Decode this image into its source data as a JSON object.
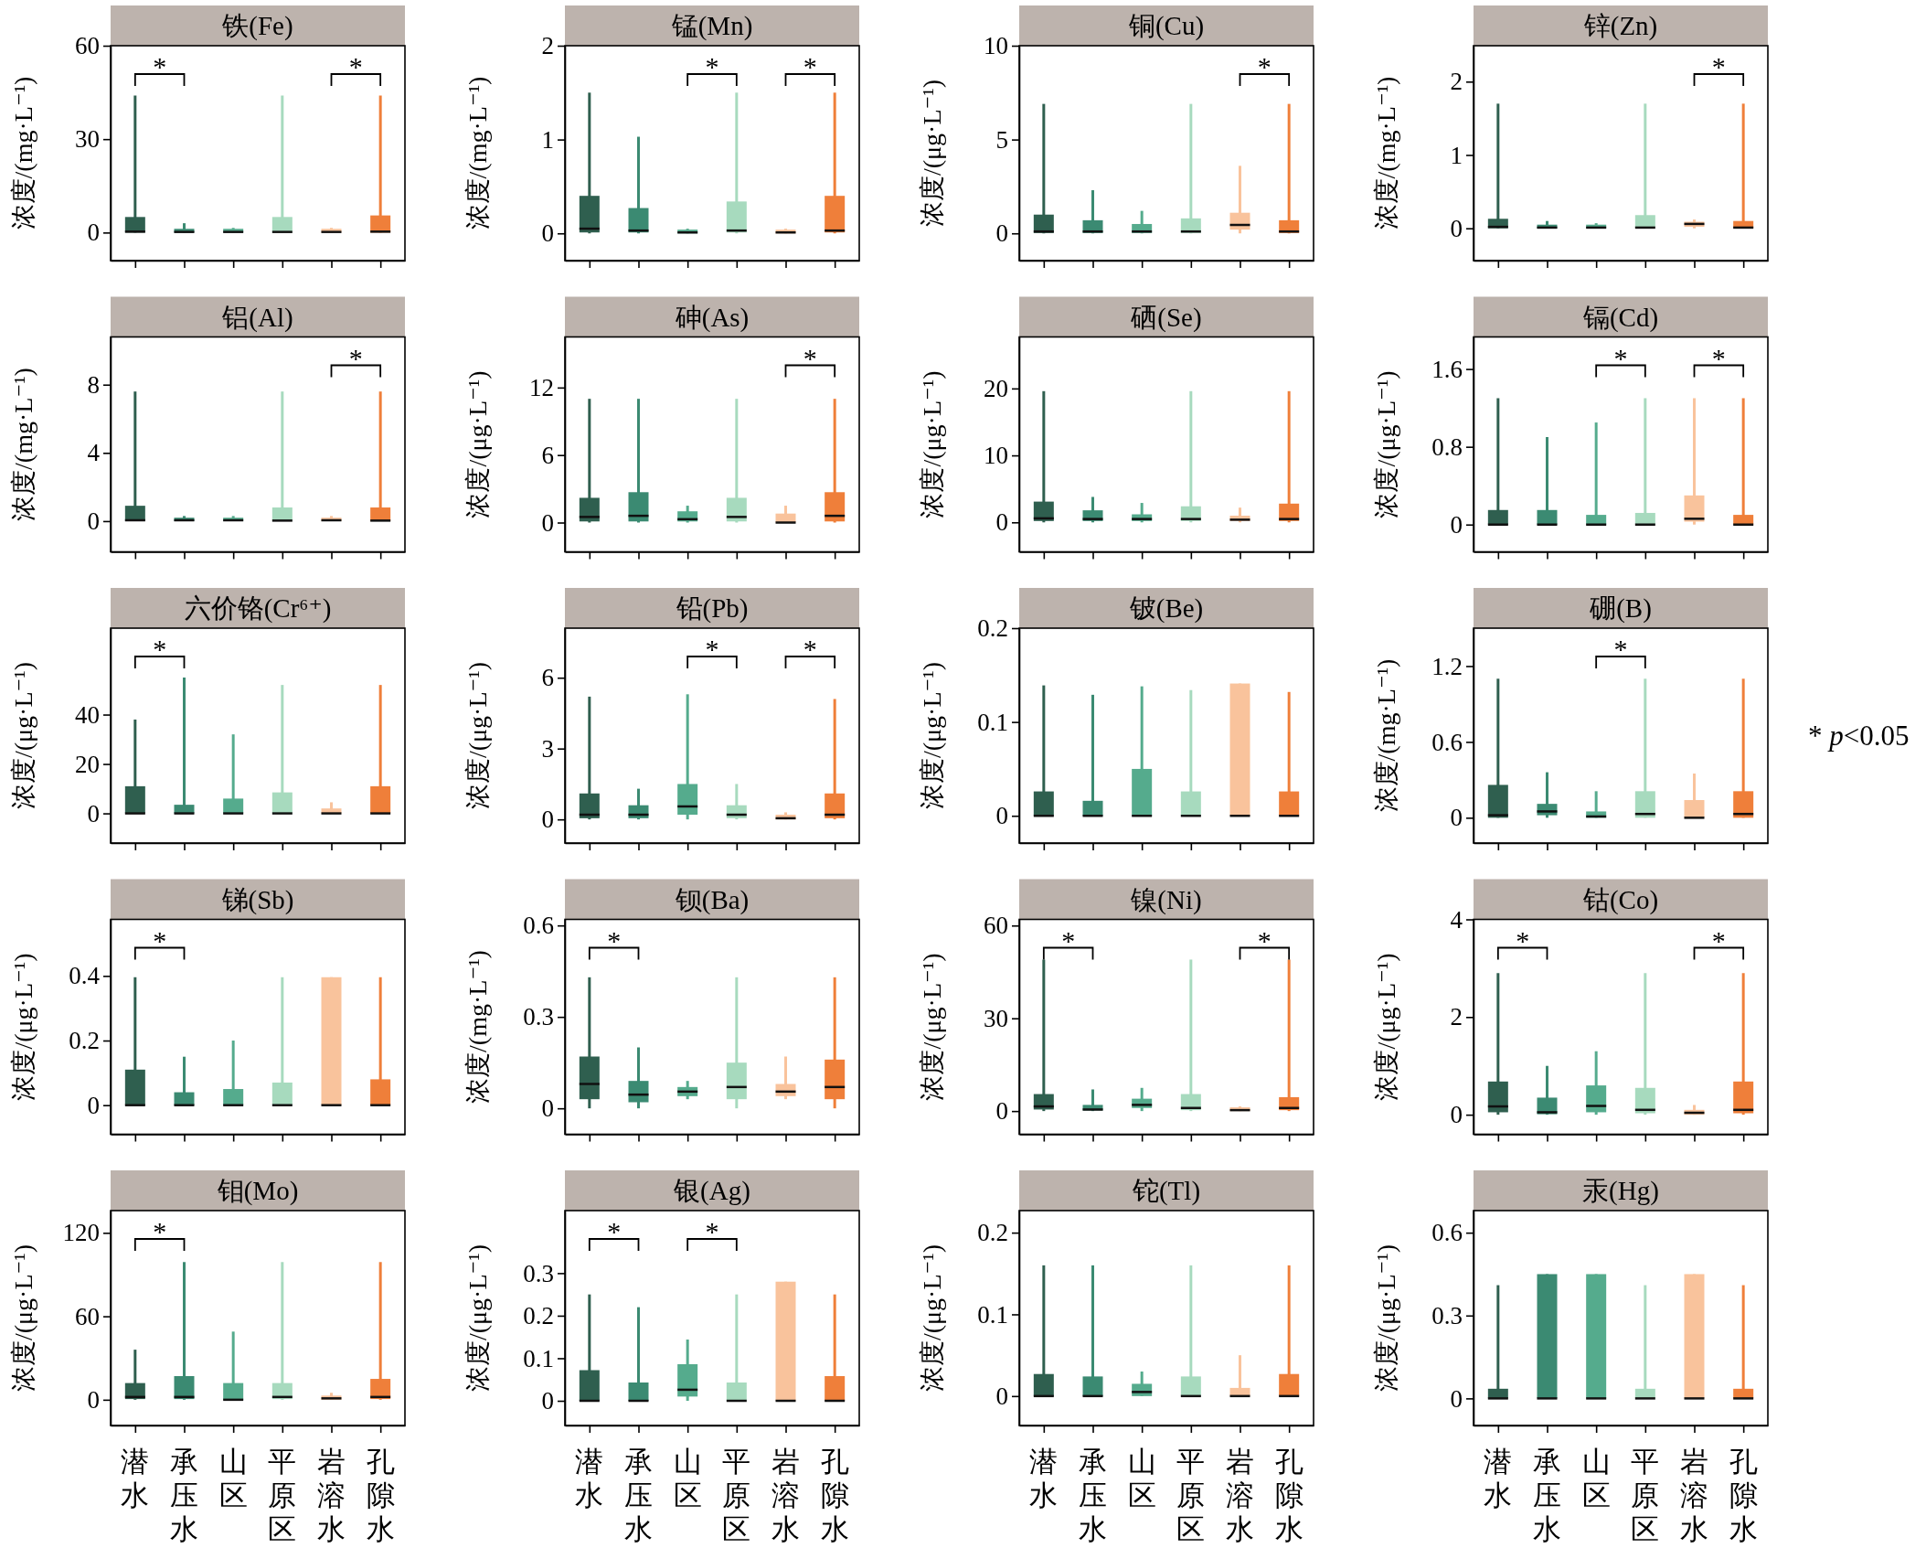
{
  "chart_data": [
    {
      "type": "box",
      "title": "铁(Fe)",
      "ylabel": "浓度/(mg·L⁻¹)",
      "categories": [
        null,
        null,
        null,
        null,
        null,
        null
      ],
      "colors": [
        "#2f5f4f",
        "#3b8a72",
        "#55ab8d",
        "#a7dabe",
        "#f9c39c",
        "#ef7f3a"
      ],
      "boxes": [
        {
          "low": 0,
          "q1": 0,
          "median": 0.3,
          "q3": 5,
          "high": 44
        },
        {
          "low": 0,
          "q1": 0,
          "median": 0.2,
          "q3": 1.2,
          "high": 3
        },
        {
          "low": 0,
          "q1": 0,
          "median": 0.2,
          "q3": 1.2,
          "high": 1.5
        },
        {
          "low": 0,
          "q1": 0,
          "median": 0.2,
          "q3": 5,
          "high": 44
        },
        {
          "low": 0,
          "q1": 0,
          "median": 0.2,
          "q3": 1.2,
          "high": 1.5
        },
        {
          "low": 0,
          "q1": 0,
          "median": 0.3,
          "q3": 5.5,
          "high": 44
        }
      ],
      "ylim": [
        -9,
        60
      ],
      "yticks": [
        0,
        30,
        60
      ],
      "annotations": [
        "*",
        "*"
      ]
    },
    {
      "type": "box",
      "title": "锰(Mn)",
      "ylabel": "浓度/(mg·L⁻¹)",
      "categories": [
        null,
        null,
        null,
        null,
        null,
        null
      ],
      "colors": [
        "#2f5f4f",
        "#3b8a72",
        "#55ab8d",
        "#a7dabe",
        "#f9c39c",
        "#ef7f3a"
      ],
      "boxes": [
        {
          "low": 0,
          "q1": 0.01,
          "median": 0.05,
          "q3": 0.4,
          "high": 1.5
        },
        {
          "low": 0,
          "q1": 0.01,
          "median": 0.03,
          "q3": 0.27,
          "high": 1.03
        },
        {
          "low": 0,
          "q1": 0,
          "median": 0.01,
          "q3": 0.04,
          "high": 0.05
        },
        {
          "low": 0,
          "q1": 0.01,
          "median": 0.03,
          "q3": 0.34,
          "high": 1.5
        },
        {
          "low": 0,
          "q1": 0,
          "median": 0.01,
          "q3": 0.04,
          "high": 0.05
        },
        {
          "low": 0,
          "q1": 0.01,
          "median": 0.03,
          "q3": 0.4,
          "high": 1.5
        }
      ],
      "ylim": [
        -0.29,
        2
      ],
      "yticks": [
        0,
        1,
        2
      ],
      "annotations": [
        "*",
        "*"
      ]
    },
    {
      "type": "box",
      "title": "铜(Cu)",
      "ylabel": "浓度/(μg·L⁻¹)",
      "categories": [
        null,
        null,
        null,
        null,
        null,
        null
      ],
      "colors": [
        "#2f5f4f",
        "#3b8a72",
        "#55ab8d",
        "#a7dabe",
        "#f9c39c",
        "#ef7f3a"
      ],
      "boxes": [
        {
          "low": 0,
          "q1": 0.02,
          "median": 0.1,
          "q3": 1,
          "high": 6.9
        },
        {
          "low": 0,
          "q1": 0.02,
          "median": 0.1,
          "q3": 0.7,
          "high": 2.3
        },
        {
          "low": 0,
          "q1": 0.02,
          "median": 0.1,
          "q3": 0.5,
          "high": 1.2
        },
        {
          "low": 0,
          "q1": 0.02,
          "median": 0.1,
          "q3": 0.8,
          "high": 6.9
        },
        {
          "low": 0,
          "q1": 0.2,
          "median": 0.45,
          "q3": 1.1,
          "high": 3.6
        },
        {
          "low": 0,
          "q1": 0.02,
          "median": 0.1,
          "q3": 0.7,
          "high": 6.9
        }
      ],
      "ylim": [
        -1.45,
        10
      ],
      "yticks": [
        0,
        5,
        10
      ],
      "annotations": [
        "*"
      ]
    },
    {
      "type": "box",
      "title": "锌(Zn)",
      "ylabel": "浓度/(mg·L⁻¹)",
      "categories": [
        null,
        null,
        null,
        null,
        null,
        null
      ],
      "colors": [
        "#2f5f4f",
        "#3b8a72",
        "#55ab8d",
        "#a7dabe",
        "#f9c39c",
        "#ef7f3a"
      ],
      "boxes": [
        {
          "low": 0,
          "q1": 0,
          "median": 0.02,
          "q3": 0.13,
          "high": 1.7
        },
        {
          "low": 0,
          "q1": 0,
          "median": 0.01,
          "q3": 0.05,
          "high": 0.1
        },
        {
          "low": 0,
          "q1": 0,
          "median": 0.01,
          "q3": 0.05,
          "high": 0.07
        },
        {
          "low": 0,
          "q1": 0,
          "median": 0.01,
          "q3": 0.18,
          "high": 1.7
        },
        {
          "low": 0,
          "q1": 0.02,
          "median": 0.06,
          "q3": 0.09,
          "high": 0.12
        },
        {
          "low": 0,
          "q1": 0,
          "median": 0.01,
          "q3": 0.1,
          "high": 1.7
        }
      ],
      "ylim": [
        -0.44,
        2.49
      ],
      "yticks": [
        0,
        1,
        2
      ],
      "annotations": [
        "*"
      ]
    },
    {
      "type": "box",
      "title": "铝(Al)",
      "ylabel": "浓度/(mg·L⁻¹)",
      "categories": [
        null,
        null,
        null,
        null,
        null,
        null
      ],
      "colors": [
        "#2f5f4f",
        "#3b8a72",
        "#55ab8d",
        "#a7dabe",
        "#f9c39c",
        "#ef7f3a"
      ],
      "boxes": [
        {
          "low": 0,
          "q1": 0,
          "median": 0.05,
          "q3": 0.9,
          "high": 7.6
        },
        {
          "low": 0,
          "q1": 0,
          "median": 0.05,
          "q3": 0.2,
          "high": 0.3
        },
        {
          "low": 0,
          "q1": 0,
          "median": 0.05,
          "q3": 0.2,
          "high": 0.3
        },
        {
          "low": 0,
          "q1": 0,
          "median": 0.03,
          "q3": 0.8,
          "high": 7.6
        },
        {
          "low": 0,
          "q1": 0,
          "median": 0.05,
          "q3": 0.2,
          "high": 0.3
        },
        {
          "low": 0,
          "q1": 0,
          "median": 0.03,
          "q3": 0.8,
          "high": 7.6
        }
      ],
      "ylim": [
        -1.8,
        10.8
      ],
      "yticks": [
        0,
        4,
        8
      ],
      "annotations": [
        "*"
      ]
    },
    {
      "type": "box",
      "title": "砷(As)",
      "ylabel": "浓度/(μg·L⁻¹)",
      "categories": [
        null,
        null,
        null,
        null,
        null,
        null
      ],
      "colors": [
        "#2f5f4f",
        "#3b8a72",
        "#55ab8d",
        "#a7dabe",
        "#f9c39c",
        "#ef7f3a"
      ],
      "boxes": [
        {
          "low": 0,
          "q1": 0.1,
          "median": 0.5,
          "q3": 2.2,
          "high": 11
        },
        {
          "low": 0,
          "q1": 0.1,
          "median": 0.6,
          "q3": 2.7,
          "high": 11
        },
        {
          "low": 0,
          "q1": 0.1,
          "median": 0.3,
          "q3": 1,
          "high": 1.5
        },
        {
          "low": 0,
          "q1": 0.1,
          "median": 0.5,
          "q3": 2.2,
          "high": 11
        },
        {
          "low": 0,
          "q1": 0,
          "median": 0,
          "q3": 0.8,
          "high": 1.5
        },
        {
          "low": 0,
          "q1": 0.1,
          "median": 0.6,
          "q3": 2.7,
          "high": 11
        }
      ],
      "ylim": [
        -2.6,
        16.5
      ],
      "yticks": [
        0,
        6,
        12
      ],
      "annotations": [
        "*"
      ]
    },
    {
      "type": "box",
      "title": "硒(Se)",
      "ylabel": "浓度/(μg·L⁻¹)",
      "categories": [
        null,
        null,
        null,
        null,
        null,
        null
      ],
      "colors": [
        "#2f5f4f",
        "#3b8a72",
        "#55ab8d",
        "#a7dabe",
        "#f9c39c",
        "#ef7f3a"
      ],
      "boxes": [
        {
          "low": 0,
          "q1": 0.2,
          "median": 0.6,
          "q3": 3.1,
          "high": 19.6
        },
        {
          "low": 0,
          "q1": 0.2,
          "median": 0.5,
          "q3": 1.8,
          "high": 3.8
        },
        {
          "low": 0,
          "q1": 0.2,
          "median": 0.5,
          "q3": 1.2,
          "high": 2.9
        },
        {
          "low": 0,
          "q1": 0.2,
          "median": 0.5,
          "q3": 2.4,
          "high": 19.6
        },
        {
          "low": 0,
          "q1": 0.2,
          "median": 0.4,
          "q3": 1,
          "high": 2.2
        },
        {
          "low": 0,
          "q1": 0.2,
          "median": 0.5,
          "q3": 2.8,
          "high": 19.6
        }
      ],
      "ylim": [
        -4.4,
        27.7
      ],
      "yticks": [
        0,
        10,
        20
      ]
    },
    {
      "type": "box",
      "title": "镉(Cd)",
      "ylabel": "浓度/(μg·L⁻¹)",
      "categories": [
        null,
        null,
        null,
        null,
        null,
        null
      ],
      "colors": [
        "#2f5f4f",
        "#3b8a72",
        "#55ab8d",
        "#a7dabe",
        "#f9c39c",
        "#ef7f3a"
      ],
      "boxes": [
        {
          "low": 0,
          "q1": 0,
          "median": 0,
          "q3": 0.15,
          "high": 1.3
        },
        {
          "low": 0,
          "q1": 0,
          "median": 0,
          "q3": 0.15,
          "high": 0.9
        },
        {
          "low": 0,
          "q1": 0,
          "median": 0,
          "q3": 0.1,
          "high": 1.05
        },
        {
          "low": 0,
          "q1": 0,
          "median": 0,
          "q3": 0.12,
          "high": 1.3
        },
        {
          "low": 0,
          "q1": 0.03,
          "median": 0.06,
          "q3": 0.3,
          "high": 1.3
        },
        {
          "low": 0,
          "q1": 0,
          "median": 0,
          "q3": 0.1,
          "high": 1.3
        }
      ],
      "ylim": [
        -0.28,
        1.93
      ],
      "yticks": [
        0,
        0.8,
        1.6
      ],
      "annotations": [
        "*",
        "*"
      ]
    },
    {
      "type": "box",
      "title": "六价铬(Cr⁶⁺)",
      "ylabel": "浓度/(μg·L⁻¹)",
      "categories": [
        null,
        null,
        null,
        null,
        null,
        null
      ],
      "colors": [
        "#2f5f4f",
        "#3b8a72",
        "#55ab8d",
        "#a7dabe",
        "#f9c39c",
        "#ef7f3a"
      ],
      "boxes": [
        {
          "low": 0,
          "q1": 0,
          "median": 0,
          "q3": 11,
          "high": 38
        },
        {
          "low": 0,
          "q1": 0,
          "median": 0,
          "q3": 3.5,
          "high": 55
        },
        {
          "low": 0,
          "q1": 0,
          "median": 0,
          "q3": 6,
          "high": 32
        },
        {
          "low": 0,
          "q1": 0,
          "median": 0,
          "q3": 8.5,
          "high": 52
        },
        {
          "low": 0,
          "q1": 0,
          "median": 0,
          "q3": 2,
          "high": 4.5
        },
        {
          "low": 0,
          "q1": 0,
          "median": 0,
          "q3": 11,
          "high": 52
        }
      ],
      "ylim": [
        -12,
        75
      ],
      "yticks": [
        0,
        20,
        40
      ],
      "annotations": [
        "*"
      ]
    },
    {
      "type": "box",
      "title": "铅(Pb)",
      "ylabel": "浓度/(μg·L⁻¹)",
      "categories": [
        null,
        null,
        null,
        null,
        null,
        null
      ],
      "colors": [
        "#2f5f4f",
        "#3b8a72",
        "#55ab8d",
        "#a7dabe",
        "#f9c39c",
        "#ef7f3a"
      ],
      "boxes": [
        {
          "low": 0,
          "q1": 0.05,
          "median": 0.2,
          "q3": 1.1,
          "high": 5.2
        },
        {
          "low": 0,
          "q1": 0.05,
          "median": 0.2,
          "q3": 0.6,
          "high": 1.3
        },
        {
          "low": 0,
          "q1": 0.2,
          "median": 0.55,
          "q3": 1.5,
          "high": 5.3
        },
        {
          "low": 0,
          "q1": 0.05,
          "median": 0.2,
          "q3": 0.6,
          "high": 1.5
        },
        {
          "low": 0,
          "q1": 0,
          "median": 0.05,
          "q3": 0.2,
          "high": 0.3
        },
        {
          "low": 0,
          "q1": 0.05,
          "median": 0.2,
          "q3": 1.1,
          "high": 5.1
        }
      ],
      "ylim": [
        -1,
        8.1
      ],
      "yticks": [
        0,
        3,
        6
      ],
      "annotations": [
        "*",
        "*"
      ]
    },
    {
      "type": "box",
      "title": "铍(Be)",
      "ylabel": "浓度/(μg·L⁻¹)",
      "categories": [
        null,
        null,
        null,
        null,
        null,
        null
      ],
      "colors": [
        "#2f5f4f",
        "#3b8a72",
        "#55ab8d",
        "#a7dabe",
        "#f9c39c",
        "#ef7f3a"
      ],
      "boxes": [
        {
          "low": 0,
          "q1": 0,
          "median": 0,
          "q3": 0.026,
          "high": 0.139
        },
        {
          "low": 0,
          "q1": 0,
          "median": 0,
          "q3": 0.016,
          "high": 0.129
        },
        {
          "low": 0,
          "q1": 0,
          "median": 0,
          "q3": 0.05,
          "high": 0.138
        },
        {
          "low": 0,
          "q1": 0,
          "median": 0,
          "q3": 0.026,
          "high": 0.134
        },
        {
          "low": 0,
          "q1": 0,
          "median": 0,
          "q3": 0.141,
          "high": 0.141
        },
        {
          "low": 0,
          "q1": 0,
          "median": 0,
          "q3": 0.026,
          "high": 0.132
        }
      ],
      "ylim": [
        -0.029,
        0.2
      ],
      "yticks": [
        0,
        0.1,
        0.2
      ]
    },
    {
      "type": "box",
      "title": "硼(B)",
      "ylabel": "浓度/(mg·L⁻¹)",
      "categories": [
        null,
        null,
        null,
        null,
        null,
        null
      ],
      "colors": [
        "#2f5f4f",
        "#3b8a72",
        "#55ab8d",
        "#a7dabe",
        "#f9c39c",
        "#ef7f3a"
      ],
      "boxes": [
        {
          "low": 0,
          "q1": 0,
          "median": 0.02,
          "q3": 0.26,
          "high": 1.1
        },
        {
          "low": 0,
          "q1": 0.02,
          "median": 0.05,
          "q3": 0.11,
          "high": 0.36
        },
        {
          "low": 0,
          "q1": 0,
          "median": 0.01,
          "q3": 0.05,
          "high": 0.21
        },
        {
          "low": 0,
          "q1": 0,
          "median": 0.03,
          "q3": 0.21,
          "high": 1.1
        },
        {
          "low": 0,
          "q1": 0,
          "median": 0,
          "q3": 0.14,
          "high": 0.35
        },
        {
          "low": 0,
          "q1": 0,
          "median": 0.03,
          "q3": 0.21,
          "high": 1.1
        }
      ],
      "ylim": [
        -0.2,
        1.5
      ],
      "yticks": [
        0,
        0.6,
        1.2
      ],
      "annotations": [
        "*",
        "* p<0.05"
      ]
    },
    {
      "type": "box",
      "title": "锑(Sb)",
      "ylabel": "浓度/(μg·L⁻¹)",
      "categories": [
        null,
        null,
        null,
        null,
        null,
        null
      ],
      "colors": [
        "#2f5f4f",
        "#3b8a72",
        "#55ab8d",
        "#a7dabe",
        "#f9c39c",
        "#ef7f3a"
      ],
      "boxes": [
        {
          "low": 0,
          "q1": 0,
          "median": 0,
          "q3": 0.11,
          "high": 0.396
        },
        {
          "low": 0,
          "q1": 0,
          "median": 0,
          "q3": 0.04,
          "high": 0.15
        },
        {
          "low": 0,
          "q1": 0,
          "median": 0,
          "q3": 0.05,
          "high": 0.2
        },
        {
          "low": 0,
          "q1": 0,
          "median": 0,
          "q3": 0.07,
          "high": 0.396
        },
        {
          "low": 0,
          "q1": 0,
          "median": 0,
          "q3": 0.396,
          "high": 0.396
        },
        {
          "low": 0,
          "q1": 0,
          "median": 0,
          "q3": 0.08,
          "high": 0.396
        }
      ],
      "ylim": [
        -0.09,
        0.575
      ],
      "yticks": [
        0,
        0.2,
        0.4
      ],
      "annotations": [
        "*"
      ]
    },
    {
      "type": "box",
      "title": "钡(Ba)",
      "ylabel": "浓度/(mg·L⁻¹)",
      "categories": [
        null,
        null,
        null,
        null,
        null,
        null
      ],
      "colors": [
        "#2f5f4f",
        "#3b8a72",
        "#55ab8d",
        "#a7dabe",
        "#f9c39c",
        "#ef7f3a"
      ],
      "boxes": [
        {
          "low": 0,
          "q1": 0.03,
          "median": 0.08,
          "q3": 0.17,
          "high": 0.43
        },
        {
          "low": 0,
          "q1": 0.02,
          "median": 0.045,
          "q3": 0.09,
          "high": 0.2
        },
        {
          "low": 0.03,
          "q1": 0.04,
          "median": 0.055,
          "q3": 0.07,
          "high": 0.09
        },
        {
          "low": 0,
          "q1": 0.03,
          "median": 0.07,
          "q3": 0.15,
          "high": 0.43
        },
        {
          "low": 0.03,
          "q1": 0.04,
          "median": 0.055,
          "q3": 0.08,
          "high": 0.17
        },
        {
          "low": 0,
          "q1": 0.03,
          "median": 0.07,
          "q3": 0.16,
          "high": 0.43
        }
      ],
      "ylim": [
        -0.085,
        0.62
      ],
      "yticks": [
        0,
        0.3,
        0.6
      ],
      "annotations": [
        "*"
      ]
    },
    {
      "type": "box",
      "title": "镍(Ni)",
      "ylabel": "浓度/(μg·L⁻¹)",
      "categories": [
        null,
        null,
        null,
        null,
        null,
        null
      ],
      "colors": [
        "#2f5f4f",
        "#3b8a72",
        "#55ab8d",
        "#a7dabe",
        "#f9c39c",
        "#ef7f3a"
      ],
      "boxes": [
        {
          "low": 0,
          "q1": 0.5,
          "median": 1.5,
          "q3": 5.5,
          "high": 49
        },
        {
          "low": 0,
          "q1": 0.2,
          "median": 0.5,
          "q3": 2,
          "high": 7
        },
        {
          "low": 0,
          "q1": 1,
          "median": 2,
          "q3": 4,
          "high": 7.5
        },
        {
          "low": 0,
          "q1": 0.3,
          "median": 1,
          "q3": 5.5,
          "high": 49
        },
        {
          "low": 0,
          "q1": 0,
          "median": 0.3,
          "q3": 1.2,
          "high": 1.5
        },
        {
          "low": 0,
          "q1": 0.3,
          "median": 1,
          "q3": 4.5,
          "high": 49
        }
      ],
      "ylim": [
        -7.5,
        62
      ],
      "yticks": [
        0,
        30,
        60
      ],
      "annotations": [
        "*",
        "*"
      ]
    },
    {
      "type": "box",
      "title": "钴(Co)",
      "ylabel": "浓度/(μg·L⁻¹)",
      "categories": [
        null,
        null,
        null,
        null,
        null,
        null
      ],
      "colors": [
        "#2f5f4f",
        "#3b8a72",
        "#55ab8d",
        "#a7dabe",
        "#f9c39c",
        "#ef7f3a"
      ],
      "boxes": [
        {
          "low": 0,
          "q1": 0.05,
          "median": 0.17,
          "q3": 0.68,
          "high": 2.9
        },
        {
          "low": 0,
          "q1": 0.01,
          "median": 0.05,
          "q3": 0.35,
          "high": 1
        },
        {
          "low": 0,
          "q1": 0.05,
          "median": 0.18,
          "q3": 0.6,
          "high": 1.3
        },
        {
          "low": 0,
          "q1": 0.03,
          "median": 0.1,
          "q3": 0.55,
          "high": 2.9
        },
        {
          "low": 0,
          "q1": 0,
          "median": 0.04,
          "q3": 0.1,
          "high": 0.2
        },
        {
          "low": 0,
          "q1": 0.03,
          "median": 0.1,
          "q3": 0.68,
          "high": 2.9
        }
      ],
      "ylim": [
        -0.4,
        4
      ],
      "yticks": [
        0,
        2,
        4
      ],
      "annotations": [
        "*",
        "*"
      ]
    },
    {
      "type": "box",
      "title": "钼(Mo)",
      "ylabel": "浓度/(μg·L⁻¹)",
      "categories": [
        "潜水",
        "承压水",
        "山区",
        "平原区",
        "岩溶水",
        "孔隙水"
      ],
      "colors": [
        "#2f5f4f",
        "#3b8a72",
        "#55ab8d",
        "#a7dabe",
        "#f9c39c",
        "#ef7f3a"
      ],
      "boxes": [
        {
          "low": 0,
          "q1": 0.5,
          "median": 2,
          "q3": 12,
          "high": 36
        },
        {
          "low": 0,
          "q1": 0.5,
          "median": 2,
          "q3": 17,
          "high": 99
        },
        {
          "low": 0,
          "q1": 0,
          "median": 0,
          "q3": 12,
          "high": 49
        },
        {
          "low": 0,
          "q1": 0.5,
          "median": 2,
          "q3": 12,
          "high": 99
        },
        {
          "low": 0,
          "q1": 0,
          "median": 1,
          "q3": 3,
          "high": 5
        },
        {
          "low": 0,
          "q1": 0.5,
          "median": 2,
          "q3": 15,
          "high": 99
        }
      ],
      "ylim": [
        -18.5,
        136
      ],
      "yticks": [
        0,
        60,
        120
      ],
      "annotations": [
        "*"
      ]
    },
    {
      "type": "box",
      "title": "银(Ag)",
      "ylabel": "浓度/(μg·L⁻¹)",
      "categories": [
        "潜水",
        "承压水",
        "山区",
        "平原区",
        "岩溶水",
        "孔隙水"
      ],
      "colors": [
        "#2f5f4f",
        "#3b8a72",
        "#55ab8d",
        "#a7dabe",
        "#f9c39c",
        "#ef7f3a"
      ],
      "boxes": [
        {
          "low": 0,
          "q1": 0,
          "median": 0,
          "q3": 0.072,
          "high": 0.25
        },
        {
          "low": 0,
          "q1": 0,
          "median": 0,
          "q3": 0.043,
          "high": 0.22
        },
        {
          "low": 0,
          "q1": 0.01,
          "median": 0.026,
          "q3": 0.086,
          "high": 0.144
        },
        {
          "low": 0,
          "q1": 0,
          "median": 0,
          "q3": 0.043,
          "high": 0.25
        },
        {
          "low": 0,
          "q1": 0,
          "median": 0,
          "q3": 0.28,
          "high": 0.28
        },
        {
          "low": 0,
          "q1": 0,
          "median": 0,
          "q3": 0.058,
          "high": 0.25
        }
      ],
      "ylim": [
        -0.058,
        0.447
      ],
      "yticks": [
        0,
        0.1,
        0.2,
        0.3
      ],
      "annotations": [
        "*",
        "*"
      ]
    },
    {
      "type": "box",
      "title": "铊(Tl)",
      "ylabel": "浓度/(μg·L⁻¹)",
      "categories": [
        "潜水",
        "承压水",
        "山区",
        "平原区",
        "岩溶水",
        "孔隙水"
      ],
      "colors": [
        "#2f5f4f",
        "#3b8a72",
        "#55ab8d",
        "#a7dabe",
        "#f9c39c",
        "#ef7f3a"
      ],
      "boxes": [
        {
          "low": 0,
          "q1": 0,
          "median": 0,
          "q3": 0.027,
          "high": 0.16
        },
        {
          "low": 0,
          "q1": 0,
          "median": 0,
          "q3": 0.024,
          "high": 0.16
        },
        {
          "low": 0,
          "q1": 0,
          "median": 0.005,
          "q3": 0.015,
          "high": 0.03
        },
        {
          "low": 0,
          "q1": 0,
          "median": 0,
          "q3": 0.024,
          "high": 0.16
        },
        {
          "low": 0,
          "q1": 0,
          "median": 0,
          "q3": 0.01,
          "high": 0.05
        },
        {
          "low": 0,
          "q1": 0,
          "median": 0,
          "q3": 0.027,
          "high": 0.16
        }
      ],
      "ylim": [
        -0.036,
        0.227
      ],
      "yticks": [
        0,
        0.1,
        0.2
      ]
    },
    {
      "type": "box",
      "title": "汞(Hg)",
      "ylabel": "浓度/(μg·L⁻¹)",
      "categories": [
        "潜水",
        "承压水",
        "山区",
        "平原区",
        "岩溶水",
        "孔隙水"
      ],
      "colors": [
        "#2f5f4f",
        "#3b8a72",
        "#55ab8d",
        "#a7dabe",
        "#f9c39c",
        "#ef7f3a"
      ],
      "boxes": [
        {
          "low": 0,
          "q1": 0,
          "median": 0,
          "q3": 0.035,
          "high": 0.41
        },
        {
          "low": 0,
          "q1": 0,
          "median": 0,
          "q3": 0.45,
          "high": 0.45
        },
        {
          "low": 0,
          "q1": 0,
          "median": 0,
          "q3": 0.45,
          "high": 0.45
        },
        {
          "low": 0,
          "q1": 0,
          "median": 0,
          "q3": 0.035,
          "high": 0.41
        },
        {
          "low": 0,
          "q1": 0,
          "median": 0,
          "q3": 0.45,
          "high": 0.45
        },
        {
          "low": 0,
          "q1": 0,
          "median": 0,
          "q3": 0.035,
          "high": 0.41
        }
      ],
      "ylim": [
        -0.098,
        0.68
      ],
      "yticks": [
        0,
        0.3,
        0.6
      ]
    }
  ]
}
